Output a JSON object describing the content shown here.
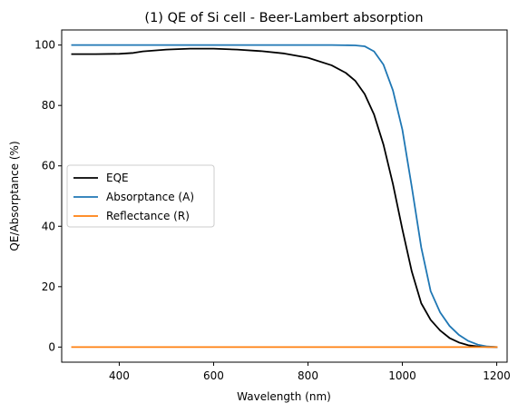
{
  "chart_data": {
    "type": "line",
    "title": "(1) QE of Si cell - Beer-Lambert absorption",
    "xlabel": "Wavelength (nm)",
    "ylabel": "QE/Absorptance (%)",
    "xlim": [
      278,
      1222
    ],
    "ylim": [
      -5,
      105
    ],
    "xticks": [
      400,
      600,
      800,
      1000,
      1200
    ],
    "yticks": [
      0,
      20,
      40,
      60,
      80,
      100
    ],
    "grid": false,
    "legend_position": "center-left",
    "series": [
      {
        "name": "EQE",
        "color": "#000000",
        "x": [
          300,
          350,
          400,
          430,
          450,
          500,
          550,
          600,
          650,
          700,
          750,
          800,
          850,
          880,
          900,
          920,
          940,
          960,
          980,
          1000,
          1020,
          1040,
          1060,
          1080,
          1100,
          1120,
          1140,
          1160,
          1180,
          1200
        ],
        "y": [
          97,
          97,
          97.1,
          97.4,
          97.9,
          98.5,
          98.8,
          98.8,
          98.5,
          98.0,
          97.2,
          95.8,
          93.3,
          90.8,
          88.2,
          83.8,
          77.0,
          67.0,
          54.0,
          39.0,
          25.0,
          14.5,
          9.0,
          5.5,
          3.0,
          1.5,
          0.6,
          0.2,
          0.05,
          0.0
        ]
      },
      {
        "name": "Absorptance (A)",
        "color": "#1f77b4",
        "x": [
          300,
          400,
          500,
          600,
          700,
          800,
          850,
          900,
          920,
          940,
          960,
          980,
          1000,
          1020,
          1040,
          1060,
          1080,
          1100,
          1120,
          1140,
          1160,
          1180,
          1200
        ],
        "y": [
          100,
          100,
          100,
          100,
          100,
          100,
          100,
          99.9,
          99.6,
          97.9,
          93.5,
          85.0,
          72.0,
          53.0,
          33.0,
          18.5,
          11.5,
          7.0,
          4.0,
          2.0,
          0.8,
          0.2,
          0.0
        ]
      },
      {
        "name": "Reflectance (R)",
        "color": "#ff7f0e",
        "x": [
          300,
          1200
        ],
        "y": [
          0,
          0
        ]
      }
    ]
  }
}
